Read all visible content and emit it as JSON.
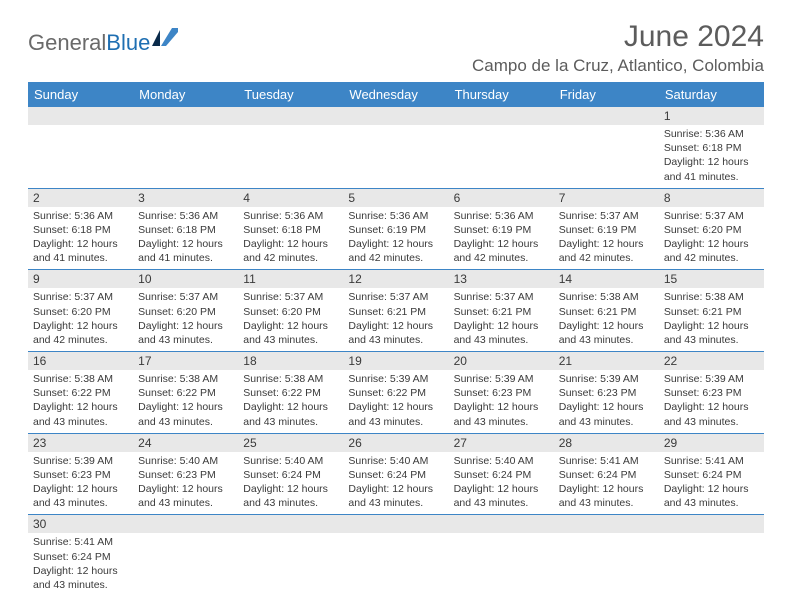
{
  "logo": {
    "part1": "General",
    "part2": "Blue"
  },
  "header": {
    "month_title": "June 2024",
    "location": "Campo de la Cruz, Atlantico, Colombia"
  },
  "colors": {
    "header_bg": "#3d85c6",
    "header_text": "#ffffff",
    "stripe": "#e8e8e8",
    "rule": "#3d85c6"
  },
  "weekdays": [
    "Sunday",
    "Monday",
    "Tuesday",
    "Wednesday",
    "Thursday",
    "Friday",
    "Saturday"
  ],
  "weeks": [
    [
      null,
      null,
      null,
      null,
      null,
      null,
      {
        "n": "1",
        "sr": "5:36 AM",
        "ss": "6:18 PM",
        "dl": "12 hours and 41 minutes."
      }
    ],
    [
      {
        "n": "2",
        "sr": "5:36 AM",
        "ss": "6:18 PM",
        "dl": "12 hours and 41 minutes."
      },
      {
        "n": "3",
        "sr": "5:36 AM",
        "ss": "6:18 PM",
        "dl": "12 hours and 41 minutes."
      },
      {
        "n": "4",
        "sr": "5:36 AM",
        "ss": "6:18 PM",
        "dl": "12 hours and 42 minutes."
      },
      {
        "n": "5",
        "sr": "5:36 AM",
        "ss": "6:19 PM",
        "dl": "12 hours and 42 minutes."
      },
      {
        "n": "6",
        "sr": "5:36 AM",
        "ss": "6:19 PM",
        "dl": "12 hours and 42 minutes."
      },
      {
        "n": "7",
        "sr": "5:37 AM",
        "ss": "6:19 PM",
        "dl": "12 hours and 42 minutes."
      },
      {
        "n": "8",
        "sr": "5:37 AM",
        "ss": "6:20 PM",
        "dl": "12 hours and 42 minutes."
      }
    ],
    [
      {
        "n": "9",
        "sr": "5:37 AM",
        "ss": "6:20 PM",
        "dl": "12 hours and 42 minutes."
      },
      {
        "n": "10",
        "sr": "5:37 AM",
        "ss": "6:20 PM",
        "dl": "12 hours and 43 minutes."
      },
      {
        "n": "11",
        "sr": "5:37 AM",
        "ss": "6:20 PM",
        "dl": "12 hours and 43 minutes."
      },
      {
        "n": "12",
        "sr": "5:37 AM",
        "ss": "6:21 PM",
        "dl": "12 hours and 43 minutes."
      },
      {
        "n": "13",
        "sr": "5:37 AM",
        "ss": "6:21 PM",
        "dl": "12 hours and 43 minutes."
      },
      {
        "n": "14",
        "sr": "5:38 AM",
        "ss": "6:21 PM",
        "dl": "12 hours and 43 minutes."
      },
      {
        "n": "15",
        "sr": "5:38 AM",
        "ss": "6:21 PM",
        "dl": "12 hours and 43 minutes."
      }
    ],
    [
      {
        "n": "16",
        "sr": "5:38 AM",
        "ss": "6:22 PM",
        "dl": "12 hours and 43 minutes."
      },
      {
        "n": "17",
        "sr": "5:38 AM",
        "ss": "6:22 PM",
        "dl": "12 hours and 43 minutes."
      },
      {
        "n": "18",
        "sr": "5:38 AM",
        "ss": "6:22 PM",
        "dl": "12 hours and 43 minutes."
      },
      {
        "n": "19",
        "sr": "5:39 AM",
        "ss": "6:22 PM",
        "dl": "12 hours and 43 minutes."
      },
      {
        "n": "20",
        "sr": "5:39 AM",
        "ss": "6:23 PM",
        "dl": "12 hours and 43 minutes."
      },
      {
        "n": "21",
        "sr": "5:39 AM",
        "ss": "6:23 PM",
        "dl": "12 hours and 43 minutes."
      },
      {
        "n": "22",
        "sr": "5:39 AM",
        "ss": "6:23 PM",
        "dl": "12 hours and 43 minutes."
      }
    ],
    [
      {
        "n": "23",
        "sr": "5:39 AM",
        "ss": "6:23 PM",
        "dl": "12 hours and 43 minutes."
      },
      {
        "n": "24",
        "sr": "5:40 AM",
        "ss": "6:23 PM",
        "dl": "12 hours and 43 minutes."
      },
      {
        "n": "25",
        "sr": "5:40 AM",
        "ss": "6:24 PM",
        "dl": "12 hours and 43 minutes."
      },
      {
        "n": "26",
        "sr": "5:40 AM",
        "ss": "6:24 PM",
        "dl": "12 hours and 43 minutes."
      },
      {
        "n": "27",
        "sr": "5:40 AM",
        "ss": "6:24 PM",
        "dl": "12 hours and 43 minutes."
      },
      {
        "n": "28",
        "sr": "5:41 AM",
        "ss": "6:24 PM",
        "dl": "12 hours and 43 minutes."
      },
      {
        "n": "29",
        "sr": "5:41 AM",
        "ss": "6:24 PM",
        "dl": "12 hours and 43 minutes."
      }
    ],
    [
      {
        "n": "30",
        "sr": "5:41 AM",
        "ss": "6:24 PM",
        "dl": "12 hours and 43 minutes."
      },
      null,
      null,
      null,
      null,
      null,
      null
    ]
  ],
  "labels": {
    "sunrise": "Sunrise: ",
    "sunset": "Sunset: ",
    "daylight": "Daylight: "
  }
}
